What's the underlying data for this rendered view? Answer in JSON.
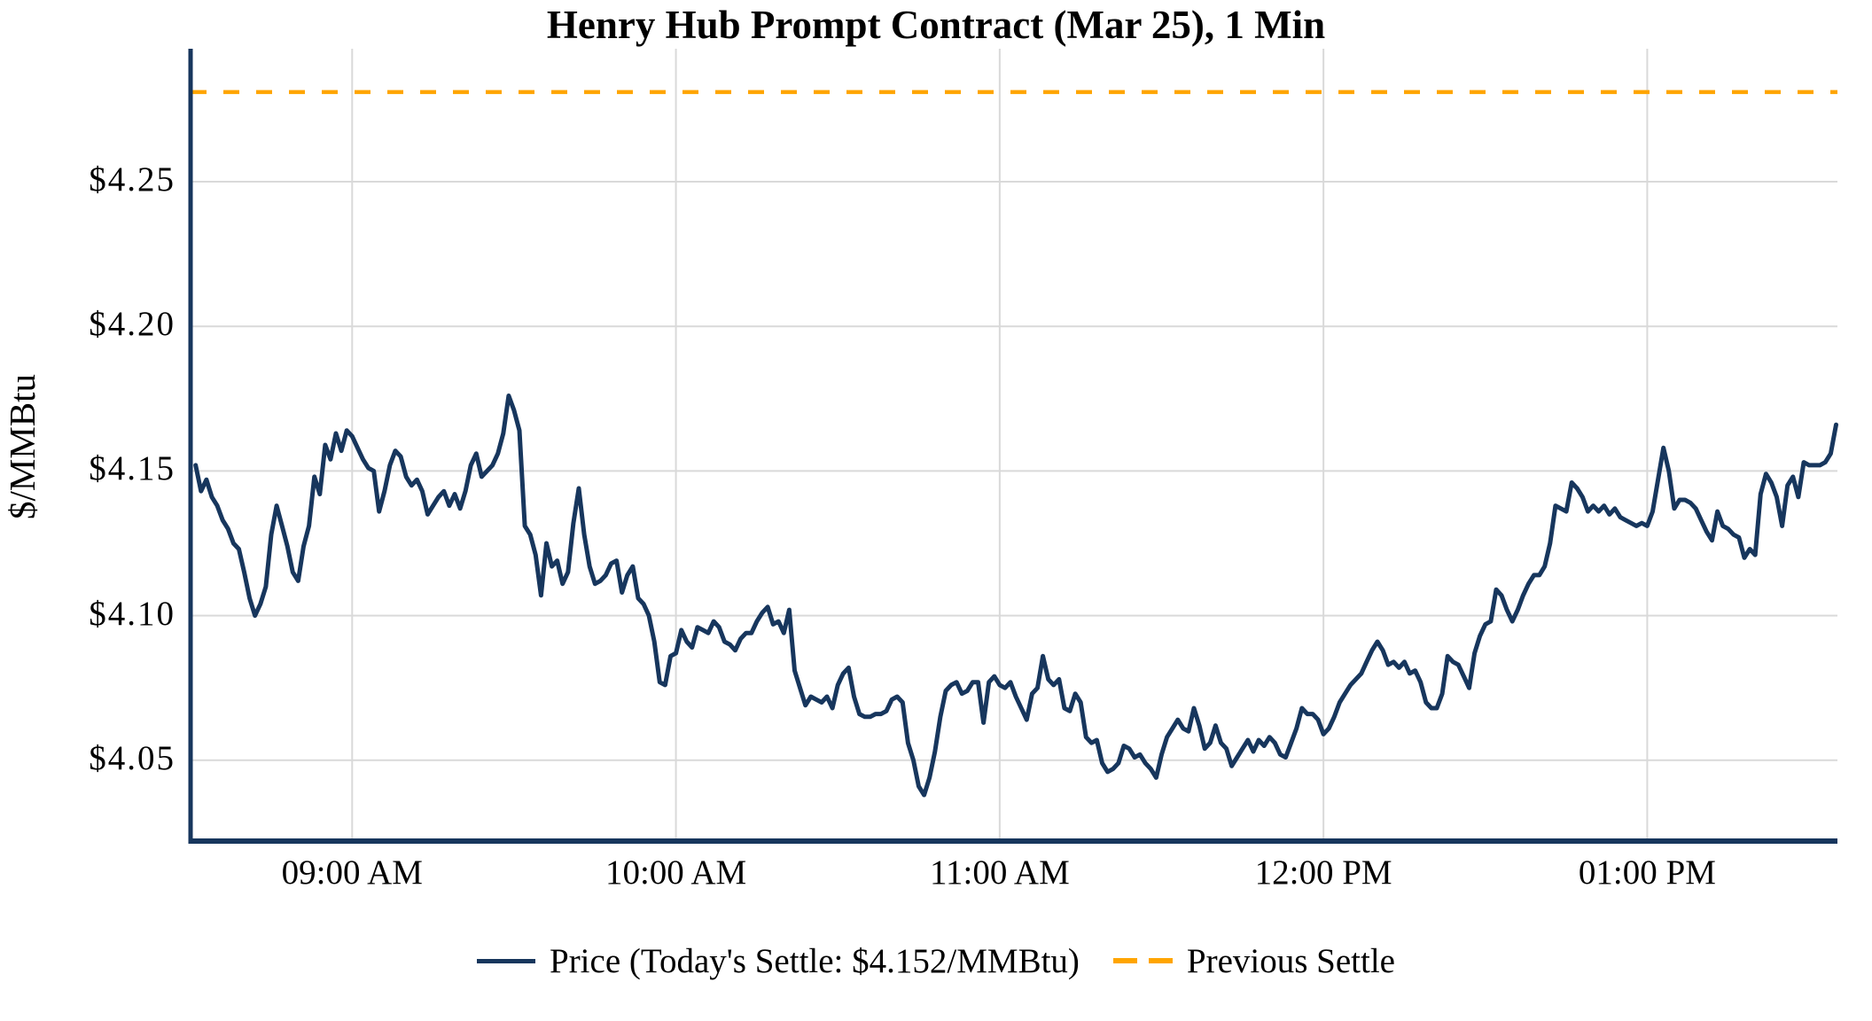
{
  "title": "Henry Hub Prompt Contract (Mar 25), 1 Min",
  "y_axis": {
    "label": "$/MMBtu",
    "ticks": [
      "$4.25",
      "$4.20",
      "$4.15",
      "$4.10",
      "$4.05"
    ]
  },
  "x_axis": {
    "ticks": [
      "09:00 AM",
      "10:00 AM",
      "11:00 AM",
      "12:00 PM",
      "01:00 PM"
    ]
  },
  "legend": {
    "price": "Price (Today's Settle: $4.152/MMBtu)",
    "previous_settle": "Previous Settle"
  },
  "colors": {
    "price_line": "#17365D",
    "previous_settle_line": "#FFA500",
    "grid": "#D9D9D9",
    "axis": "#17365D",
    "text": "#000000",
    "background": "#FFFFFF"
  },
  "chart_data": {
    "type": "line",
    "title": "Henry Hub Prompt Contract (Mar 25), 1 Min",
    "xlabel": "",
    "ylabel": "$/MMBtu",
    "ylim": [
      4.021,
      4.296
    ],
    "y_tick_values": [
      4.25,
      4.2,
      4.15,
      4.1,
      4.05
    ],
    "x_tick_labels": [
      "09:00 AM",
      "10:00 AM",
      "11:00 AM",
      "12:00 PM",
      "01:00 PM"
    ],
    "grid": "both",
    "legend_position": "bottom",
    "today_settle": 4.152,
    "previous_settle": 4.281,
    "series": [
      {
        "name": "Price (Today's Settle: $4.152/MMBtu)",
        "type": "line",
        "style": "solid",
        "color": "#17365D",
        "start_time": "08:31 AM",
        "end_time": "01:35 PM",
        "interval_minutes": 1,
        "values": [
          4.152,
          4.143,
          4.147,
          4.141,
          4.138,
          4.133,
          4.13,
          4.125,
          4.123,
          4.115,
          4.106,
          4.1,
          4.104,
          4.11,
          4.128,
          4.138,
          4.131,
          4.124,
          4.115,
          4.112,
          4.124,
          4.131,
          4.148,
          4.142,
          4.159,
          4.154,
          4.163,
          4.157,
          4.164,
          4.162,
          4.158,
          4.154,
          4.151,
          4.15,
          4.136,
          4.143,
          4.152,
          4.157,
          4.155,
          4.148,
          4.145,
          4.147,
          4.143,
          4.135,
          4.138,
          4.141,
          4.143,
          4.138,
          4.142,
          4.137,
          4.143,
          4.152,
          4.156,
          4.148,
          4.15,
          4.152,
          4.156,
          4.163,
          4.176,
          4.171,
          4.164,
          4.131,
          4.128,
          4.121,
          4.107,
          4.125,
          4.117,
          4.119,
          4.111,
          4.115,
          4.132,
          4.144,
          4.128,
          4.117,
          4.111,
          4.112,
          4.114,
          4.118,
          4.119,
          4.108,
          4.114,
          4.117,
          4.106,
          4.104,
          4.1,
          4.091,
          4.077,
          4.076,
          4.086,
          4.087,
          4.095,
          4.091,
          4.089,
          4.096,
          4.095,
          4.094,
          4.098,
          4.096,
          4.091,
          4.09,
          4.088,
          4.092,
          4.094,
          4.094,
          4.098,
          4.101,
          4.103,
          4.097,
          4.098,
          4.094,
          4.102,
          4.081,
          4.075,
          4.069,
          4.072,
          4.071,
          4.07,
          4.072,
          4.068,
          4.076,
          4.08,
          4.082,
          4.072,
          4.066,
          4.065,
          4.065,
          4.066,
          4.066,
          4.067,
          4.071,
          4.072,
          4.07,
          4.056,
          4.05,
          4.041,
          4.038,
          4.044,
          4.053,
          4.065,
          4.074,
          4.076,
          4.077,
          4.073,
          4.074,
          4.077,
          4.077,
          4.063,
          4.077,
          4.079,
          4.076,
          4.075,
          4.077,
          4.072,
          4.068,
          4.064,
          4.073,
          4.075,
          4.086,
          4.078,
          4.076,
          4.078,
          4.068,
          4.067,
          4.073,
          4.07,
          4.058,
          4.056,
          4.057,
          4.049,
          4.046,
          4.047,
          4.049,
          4.055,
          4.054,
          4.051,
          4.052,
          4.049,
          4.047,
          4.044,
          4.052,
          4.058,
          4.061,
          4.064,
          4.061,
          4.06,
          4.068,
          4.062,
          4.054,
          4.056,
          4.062,
          4.056,
          4.054,
          4.048,
          4.051,
          4.054,
          4.057,
          4.053,
          4.057,
          4.055,
          4.058,
          4.056,
          4.052,
          4.051,
          4.056,
          4.061,
          4.068,
          4.066,
          4.066,
          4.064,
          4.059,
          4.061,
          4.065,
          4.07,
          4.073,
          4.076,
          4.078,
          4.08,
          4.084,
          4.088,
          4.091,
          4.088,
          4.083,
          4.084,
          4.082,
          4.084,
          4.08,
          4.081,
          4.077,
          4.07,
          4.068,
          4.068,
          4.073,
          4.086,
          4.084,
          4.083,
          4.079,
          4.075,
          4.087,
          4.093,
          4.097,
          4.098,
          4.109,
          4.107,
          4.102,
          4.098,
          4.102,
          4.107,
          4.111,
          4.114,
          4.114,
          4.117,
          4.125,
          4.138,
          4.137,
          4.136,
          4.146,
          4.144,
          4.141,
          4.136,
          4.138,
          4.136,
          4.138,
          4.135,
          4.137,
          4.134,
          4.133,
          4.132,
          4.131,
          4.132,
          4.131,
          4.136,
          4.147,
          4.158,
          4.15,
          4.137,
          4.14,
          4.14,
          4.139,
          4.137,
          4.133,
          4.129,
          4.126,
          4.136,
          4.131,
          4.13,
          4.128,
          4.127,
          4.12,
          4.123,
          4.121,
          4.142,
          4.149,
          4.146,
          4.141,
          4.131,
          4.145,
          4.148,
          4.141,
          4.153,
          4.152,
          4.152,
          4.152,
          4.153,
          4.156,
          4.166
        ]
      },
      {
        "name": "Previous Settle",
        "type": "hline",
        "style": "dashed",
        "color": "#FFA500",
        "value": 4.281
      }
    ]
  }
}
